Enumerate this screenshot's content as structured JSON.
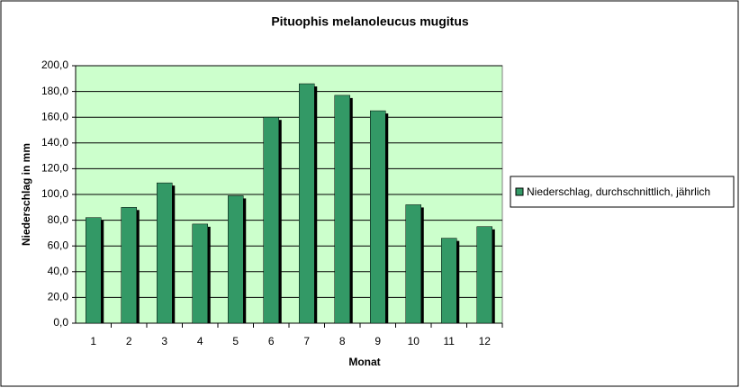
{
  "chart_data": {
    "type": "bar",
    "title": "Pituophis melanoleucus mugitus",
    "x_label": "Monat",
    "y_label": "Niederschlag in mm",
    "categories": [
      "1",
      "2",
      "3",
      "4",
      "5",
      "6",
      "7",
      "8",
      "9",
      "10",
      "11",
      "12"
    ],
    "series": [
      {
        "name": "Niederschlag, durchschnittlich, jährlich",
        "color": "#339966",
        "values": [
          82,
          90,
          109,
          77,
          99,
          160,
          186,
          177,
          165,
          92,
          66,
          75
        ]
      }
    ],
    "ylim": [
      0,
      200
    ],
    "yticks": [
      {
        "value": 0,
        "label": "0,0"
      },
      {
        "value": 20,
        "label": "20,0"
      },
      {
        "value": 40,
        "label": "40,0"
      },
      {
        "value": 60,
        "label": "60,0"
      },
      {
        "value": 80,
        "label": "80,0"
      },
      {
        "value": 100,
        "label": "100,0"
      },
      {
        "value": 120,
        "label": "120,0"
      },
      {
        "value": 140,
        "label": "140,0"
      },
      {
        "value": 160,
        "label": "160,0"
      },
      {
        "value": 180,
        "label": "180,0"
      },
      {
        "value": 200,
        "label": "200,0"
      }
    ],
    "grid": true,
    "legend": "right",
    "plot_background": "#ccffcc"
  }
}
